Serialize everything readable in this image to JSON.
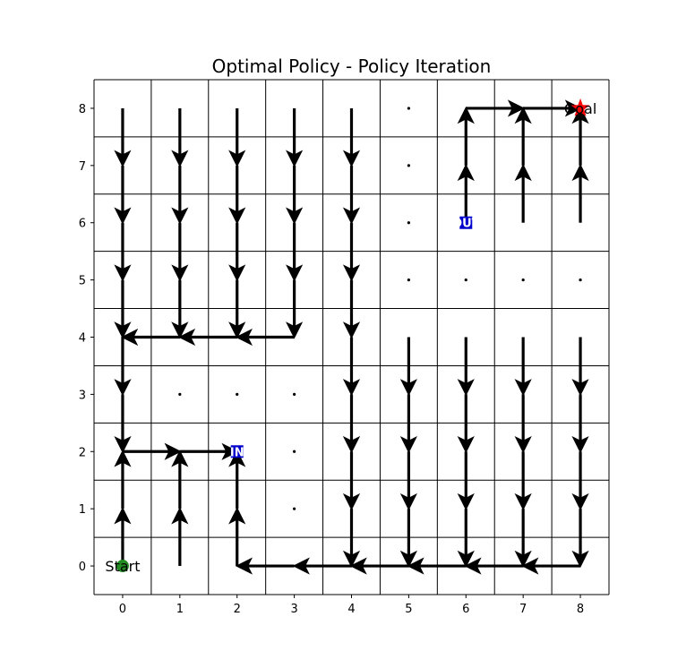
{
  "chart_data": {
    "type": "quiver",
    "title": "Optimal Policy - Policy Iteration",
    "xlabel": "",
    "ylabel": "",
    "xlim": [
      -0.5,
      8.5
    ],
    "ylim": [
      -0.5,
      8.5
    ],
    "x_ticks": [
      "0",
      "1",
      "2",
      "3",
      "4",
      "5",
      "6",
      "7",
      "8"
    ],
    "y_ticks": [
      "0",
      "1",
      "2",
      "3",
      "4",
      "5",
      "6",
      "7",
      "8"
    ],
    "grid": true,
    "colors": {
      "arrow": "#000000",
      "start": "#228b22",
      "goal": "#ff0000",
      "portal": "#0000cd",
      "grid": "#000000"
    },
    "start": {
      "x": 0,
      "y": 0,
      "label": "Start"
    },
    "goal": {
      "x": 8,
      "y": 8,
      "label": "Goal"
    },
    "portals": [
      {
        "x": 2,
        "y": 2,
        "label": "IN"
      },
      {
        "x": 6,
        "y": 6,
        "label": "OUT"
      }
    ],
    "policy": [
      {
        "x": 0,
        "y": 8,
        "a": "down"
      },
      {
        "x": 1,
        "y": 8,
        "a": "down"
      },
      {
        "x": 2,
        "y": 8,
        "a": "down"
      },
      {
        "x": 3,
        "y": 8,
        "a": "down"
      },
      {
        "x": 4,
        "y": 8,
        "a": "down"
      },
      {
        "x": 5,
        "y": 8,
        "a": "none"
      },
      {
        "x": 6,
        "y": 8,
        "a": "right"
      },
      {
        "x": 7,
        "y": 8,
        "a": "right"
      },
      {
        "x": 0,
        "y": 7,
        "a": "down"
      },
      {
        "x": 1,
        "y": 7,
        "a": "down"
      },
      {
        "x": 2,
        "y": 7,
        "a": "down"
      },
      {
        "x": 3,
        "y": 7,
        "a": "down"
      },
      {
        "x": 4,
        "y": 7,
        "a": "down"
      },
      {
        "x": 5,
        "y": 7,
        "a": "none"
      },
      {
        "x": 6,
        "y": 7,
        "a": "up"
      },
      {
        "x": 7,
        "y": 7,
        "a": "up"
      },
      {
        "x": 8,
        "y": 7,
        "a": "up"
      },
      {
        "x": 0,
        "y": 6,
        "a": "down"
      },
      {
        "x": 1,
        "y": 6,
        "a": "down"
      },
      {
        "x": 2,
        "y": 6,
        "a": "down"
      },
      {
        "x": 3,
        "y": 6,
        "a": "down"
      },
      {
        "x": 4,
        "y": 6,
        "a": "down"
      },
      {
        "x": 5,
        "y": 6,
        "a": "none"
      },
      {
        "x": 6,
        "y": 6,
        "a": "up"
      },
      {
        "x": 7,
        "y": 6,
        "a": "up"
      },
      {
        "x": 8,
        "y": 6,
        "a": "up"
      },
      {
        "x": 0,
        "y": 5,
        "a": "down"
      },
      {
        "x": 1,
        "y": 5,
        "a": "down"
      },
      {
        "x": 2,
        "y": 5,
        "a": "down"
      },
      {
        "x": 3,
        "y": 5,
        "a": "down"
      },
      {
        "x": 4,
        "y": 5,
        "a": "down"
      },
      {
        "x": 5,
        "y": 5,
        "a": "none"
      },
      {
        "x": 6,
        "y": 5,
        "a": "none"
      },
      {
        "x": 7,
        "y": 5,
        "a": "none"
      },
      {
        "x": 8,
        "y": 5,
        "a": "none"
      },
      {
        "x": 0,
        "y": 4,
        "a": "down"
      },
      {
        "x": 1,
        "y": 4,
        "a": "left"
      },
      {
        "x": 2,
        "y": 4,
        "a": "left"
      },
      {
        "x": 3,
        "y": 4,
        "a": "left"
      },
      {
        "x": 4,
        "y": 4,
        "a": "down"
      },
      {
        "x": 5,
        "y": 4,
        "a": "down"
      },
      {
        "x": 6,
        "y": 4,
        "a": "down"
      },
      {
        "x": 7,
        "y": 4,
        "a": "down"
      },
      {
        "x": 8,
        "y": 4,
        "a": "down"
      },
      {
        "x": 0,
        "y": 3,
        "a": "down"
      },
      {
        "x": 1,
        "y": 3,
        "a": "none"
      },
      {
        "x": 2,
        "y": 3,
        "a": "none"
      },
      {
        "x": 3,
        "y": 3,
        "a": "none"
      },
      {
        "x": 4,
        "y": 3,
        "a": "down"
      },
      {
        "x": 5,
        "y": 3,
        "a": "down"
      },
      {
        "x": 6,
        "y": 3,
        "a": "down"
      },
      {
        "x": 7,
        "y": 3,
        "a": "down"
      },
      {
        "x": 8,
        "y": 3,
        "a": "down"
      },
      {
        "x": 0,
        "y": 2,
        "a": "right"
      },
      {
        "x": 1,
        "y": 2,
        "a": "right"
      },
      {
        "x": 3,
        "y": 2,
        "a": "none"
      },
      {
        "x": 4,
        "y": 2,
        "a": "down"
      },
      {
        "x": 5,
        "y": 2,
        "a": "down"
      },
      {
        "x": 6,
        "y": 2,
        "a": "down"
      },
      {
        "x": 7,
        "y": 2,
        "a": "down"
      },
      {
        "x": 8,
        "y": 2,
        "a": "down"
      },
      {
        "x": 0,
        "y": 1,
        "a": "up"
      },
      {
        "x": 1,
        "y": 1,
        "a": "up"
      },
      {
        "x": 2,
        "y": 1,
        "a": "up"
      },
      {
        "x": 3,
        "y": 1,
        "a": "none"
      },
      {
        "x": 4,
        "y": 1,
        "a": "down"
      },
      {
        "x": 5,
        "y": 1,
        "a": "down"
      },
      {
        "x": 6,
        "y": 1,
        "a": "down"
      },
      {
        "x": 7,
        "y": 1,
        "a": "down"
      },
      {
        "x": 8,
        "y": 1,
        "a": "down"
      },
      {
        "x": 0,
        "y": 0,
        "a": "up"
      },
      {
        "x": 1,
        "y": 0,
        "a": "up"
      },
      {
        "x": 2,
        "y": 0,
        "a": "up"
      },
      {
        "x": 3,
        "y": 0,
        "a": "left"
      },
      {
        "x": 4,
        "y": 0,
        "a": "left"
      },
      {
        "x": 5,
        "y": 0,
        "a": "left"
      },
      {
        "x": 6,
        "y": 0,
        "a": "left"
      },
      {
        "x": 7,
        "y": 0,
        "a": "left"
      },
      {
        "x": 8,
        "y": 0,
        "a": "left"
      }
    ]
  }
}
